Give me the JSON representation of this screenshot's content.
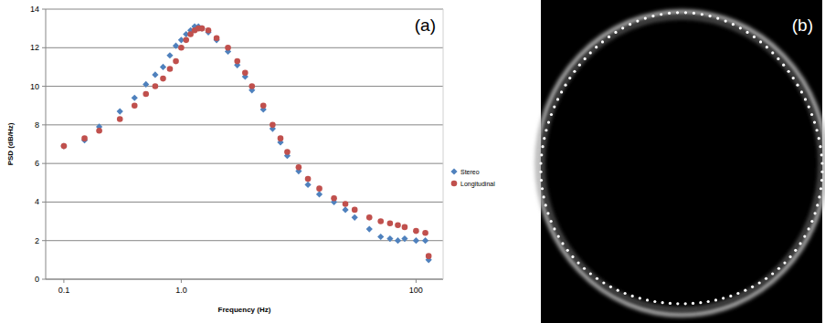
{
  "chart_data": {
    "type": "scatter",
    "annotations": [
      "(a)"
    ],
    "x_label": "Frequency (Hz)",
    "y_label": "PSD (dB/Hz)",
    "x": [
      0.1,
      0.15,
      0.2,
      0.3,
      0.4,
      0.5,
      0.6,
      0.7,
      0.8,
      0.9,
      1.0,
      1.1,
      1.2,
      1.3,
      1.4,
      1.5,
      1.7,
      2,
      2.5,
      3,
      3.5,
      4,
      5,
      6,
      7,
      8,
      10,
      12,
      15,
      20,
      25,
      30,
      40,
      50,
      60,
      70,
      80,
      100,
      120,
      128
    ],
    "series": [
      {
        "name": "Stereo",
        "color": "#4f81bd",
        "marker": "diamond",
        "values": [
          6.9,
          7.2,
          7.9,
          8.7,
          9.4,
          10.1,
          10.6,
          11.0,
          11.6,
          12.1,
          12.4,
          12.7,
          12.9,
          13.1,
          13.1,
          13.0,
          12.8,
          12.4,
          11.8,
          11.1,
          10.5,
          9.8,
          8.8,
          7.8,
          7.1,
          6.4,
          5.6,
          4.9,
          4.4,
          4.0,
          3.6,
          3.2,
          2.6,
          2.2,
          2.1,
          2.0,
          2.1,
          2.0,
          2.0,
          1.0
        ]
      },
      {
        "name": "Longitudinal",
        "color": "#c0504d",
        "marker": "circle",
        "values": [
          6.9,
          7.3,
          7.7,
          8.3,
          9.0,
          9.6,
          10.0,
          10.4,
          10.9,
          11.3,
          12.0,
          12.4,
          12.7,
          12.9,
          13.0,
          13.0,
          12.9,
          12.5,
          12.0,
          11.3,
          10.7,
          10.0,
          9.0,
          8.0,
          7.3,
          6.6,
          5.8,
          5.2,
          4.7,
          4.2,
          3.9,
          3.6,
          3.2,
          3.0,
          2.9,
          2.8,
          2.7,
          2.5,
          2.4,
          1.2
        ]
      }
    ],
    "xlim": [
      0.07,
      170
    ],
    "ylim": [
      0,
      14
    ],
    "xticks": [
      {
        "value": 0.1,
        "label": "0.1"
      },
      {
        "value": 1,
        "label": "1.0"
      },
      100
    ],
    "yticks": [
      0,
      2,
      4,
      6,
      8,
      10,
      12,
      14
    ],
    "log": "x",
    "grid": true,
    "legend": "right"
  },
  "image": {
    "label": "(b)"
  }
}
